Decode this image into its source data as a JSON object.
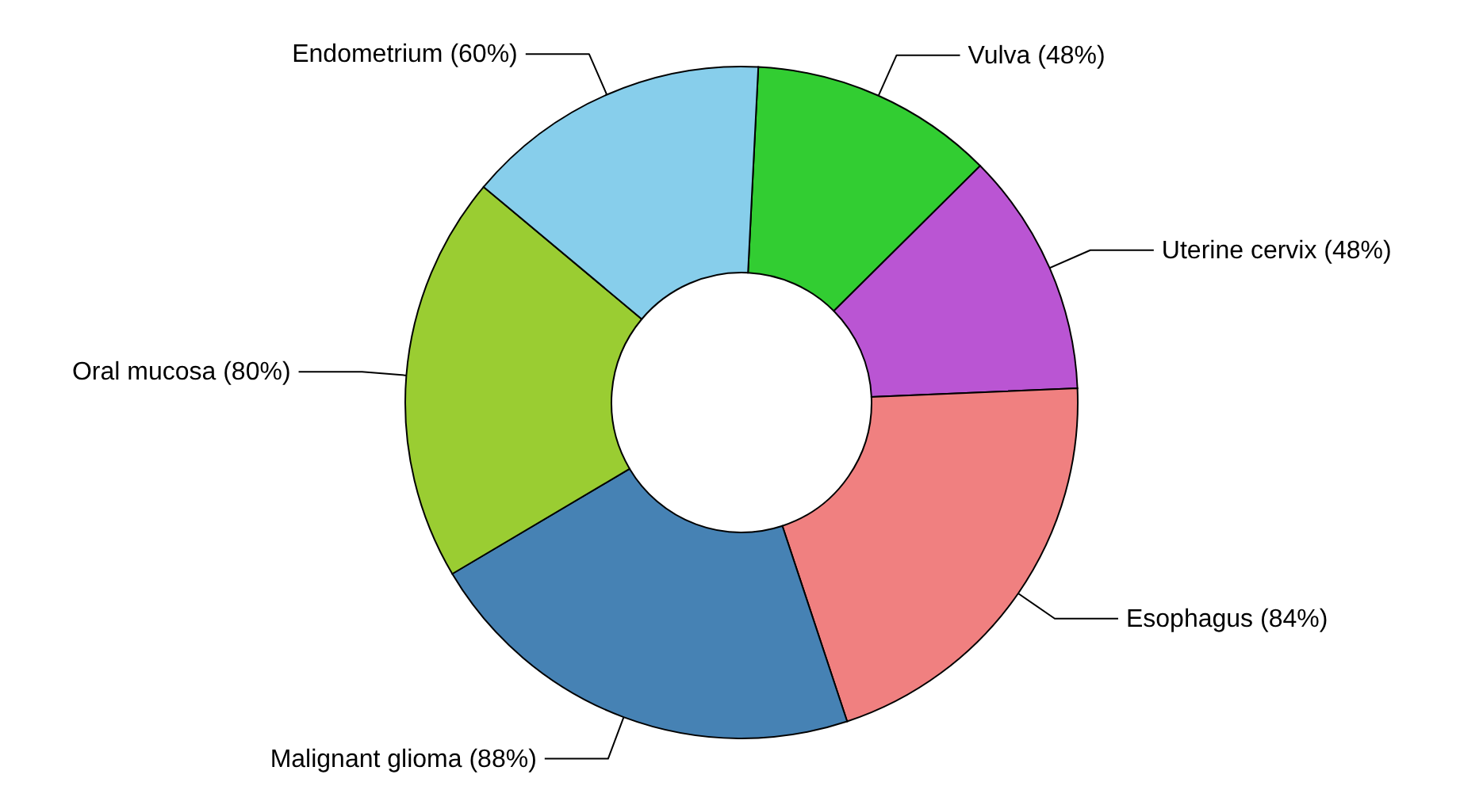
{
  "chart_data": {
    "type": "donut",
    "categories": [
      "Vulva (48%)",
      "Uterine cervix (48%)",
      "Esophagus (84%)",
      "Malignant glioma (88%)",
      "Oral mucosa (80%)",
      "Endometrium (60%)"
    ],
    "values": [
      48,
      48,
      84,
      88,
      80,
      60
    ],
    "colors": [
      "#32cd32",
      "#ba55d3",
      "#f08080",
      "#4682b4",
      "#9acd32",
      "#87ceeb"
    ]
  }
}
